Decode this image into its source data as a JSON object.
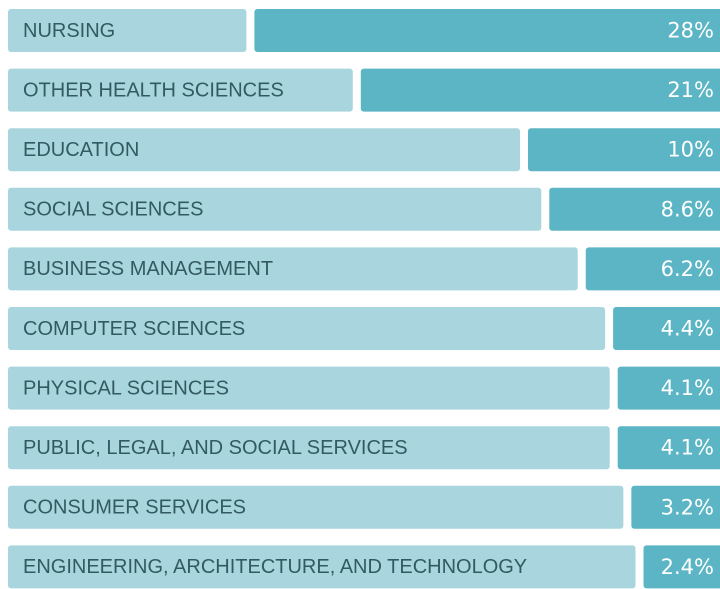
{
  "chart_data": {
    "type": "bar",
    "categories": [
      "NURSING",
      "OTHER HEALTH SCIENCES",
      "EDUCATION",
      "SOCIAL SCIENCES",
      "BUSINESS MANAGEMENT",
      "COMPUTER SCIENCES",
      "PHYSICAL SCIENCES",
      "PUBLIC, LEGAL, AND SOCIAL SERVICES",
      "CONSUMER SERVICES",
      "ENGINEERING, ARCHITECTURE, AND TECHNOLOGY"
    ],
    "values": [
      28,
      21,
      10,
      8.6,
      6.2,
      4.4,
      4.1,
      4.1,
      3.2,
      2.4
    ],
    "value_labels": [
      "28%",
      "21%",
      "10%",
      "8.6%",
      "6.2%",
      "4.4%",
      "4.1%",
      "4.1%",
      "3.2%",
      "2.4%"
    ],
    "color": "#5bb5c5",
    "background_color": "#a9d6de"
  }
}
